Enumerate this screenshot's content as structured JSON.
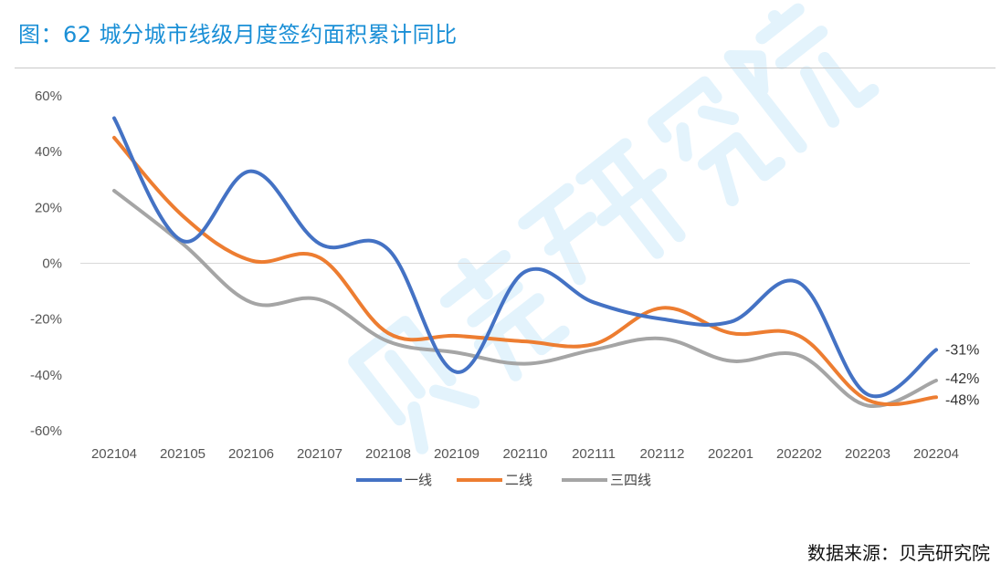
{
  "title": "图：62 城分城市线级月度签约面积累计同比",
  "source": "数据来源：贝壳研究院",
  "watermark": "贝壳研究院",
  "chart_data": {
    "type": "line",
    "title": "图：62 城分城市线级月度签约面积累计同比",
    "xlabel": "",
    "ylabel": "",
    "categories": [
      "202104",
      "202105",
      "202106",
      "202107",
      "202108",
      "202109",
      "202110",
      "202111",
      "202112",
      "202201",
      "202202",
      "202203",
      "202204"
    ],
    "ylim": [
      -60,
      60
    ],
    "yticks": [
      60,
      40,
      20,
      0,
      -20,
      -40,
      -60
    ],
    "ytick_labels": [
      "60%",
      "40%",
      "20%",
      "0%",
      "-20%",
      "-40%",
      "-60%"
    ],
    "grid": "zero-line only",
    "legend": "bottom",
    "smooth": true,
    "series": [
      {
        "name": "一线",
        "color": "#4472c4",
        "values": [
          52,
          8,
          33,
          7,
          5,
          -39,
          -3,
          -14,
          -20,
          -21,
          -7,
          -47,
          -31
        ],
        "end_label": "-31%"
      },
      {
        "name": "二线",
        "color": "#ed7d31",
        "values": [
          45,
          17,
          1,
          2,
          -25,
          -26,
          -28,
          -29,
          -16,
          -25,
          -26,
          -49,
          -48
        ],
        "end_label": "-48%"
      },
      {
        "name": "三四线",
        "color": "#a5a5a5",
        "values": [
          26,
          7,
          -14,
          -13,
          -28,
          -32,
          -36,
          -31,
          -27,
          -35,
          -33,
          -51,
          -42
        ],
        "end_label": "-42%"
      }
    ]
  }
}
